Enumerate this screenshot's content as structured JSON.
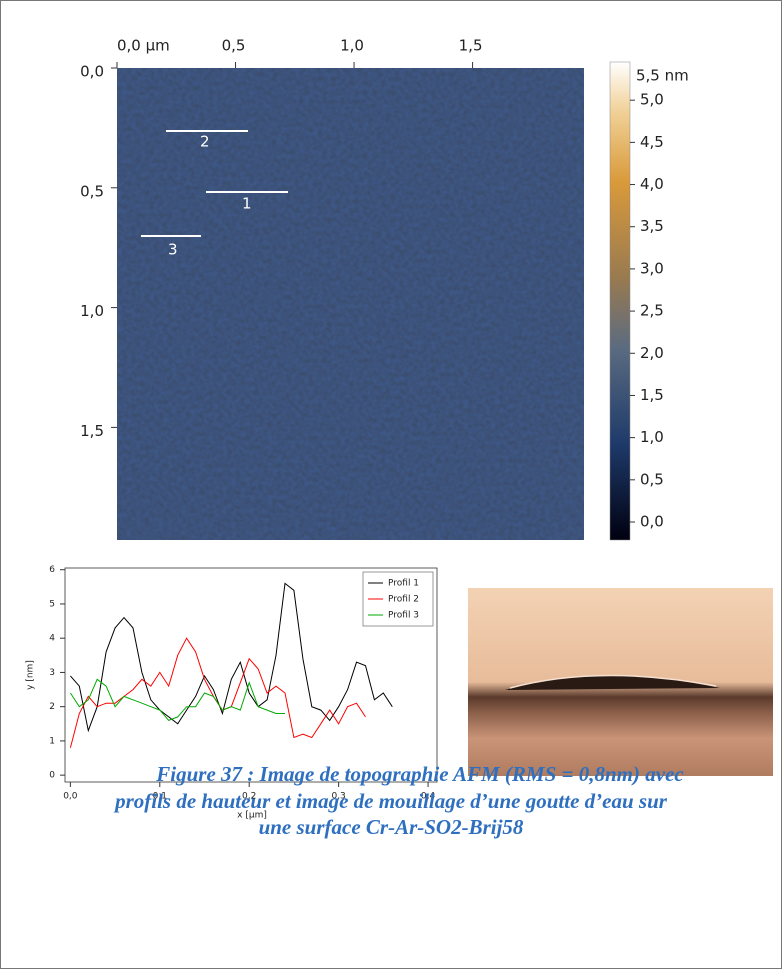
{
  "afm": {
    "xticks": [
      {
        "value": 0,
        "label": "0,0 µm"
      },
      {
        "value": 0.5,
        "label": "0,5"
      },
      {
        "value": 1.0,
        "label": "1,0"
      },
      {
        "value": 1.5,
        "label": "1,5"
      }
    ],
    "yticks": [
      {
        "value": 0,
        "label": "0,0"
      },
      {
        "value": 0.5,
        "label": "0,5"
      },
      {
        "value": 1.0,
        "label": "1,0"
      },
      {
        "value": 1.5,
        "label": "1,5"
      }
    ],
    "lim": [
      0,
      1.97
    ],
    "profiles": [
      "1",
      "2",
      "3"
    ],
    "colorbar": {
      "lim": [
        0,
        5.5
      ],
      "max_label": "5,5 nm",
      "ticks": [
        {
          "value": 0,
          "label": "0,0"
        },
        {
          "value": 0.5,
          "label": "0,5"
        },
        {
          "value": 1.0,
          "label": "1,0"
        },
        {
          "value": 1.5,
          "label": "1,5"
        },
        {
          "value": 2.0,
          "label": "2,0"
        },
        {
          "value": 2.5,
          "label": "2,5"
        },
        {
          "value": 3.0,
          "label": "3,0"
        },
        {
          "value": 3.5,
          "label": "3,5"
        },
        {
          "value": 4.0,
          "label": "4,0"
        },
        {
          "value": 4.5,
          "label": "4,5"
        },
        {
          "value": 5.0,
          "label": "5,0"
        }
      ]
    }
  },
  "chart_data": {
    "type": "line",
    "x_label": "x [µm]",
    "y_label": "y [nm]",
    "x": [
      0,
      0.01,
      0.02,
      0.03,
      0.04,
      0.05,
      0.06,
      0.07,
      0.08,
      0.09,
      0.1,
      0.11,
      0.12,
      0.13,
      0.14,
      0.15,
      0.16,
      0.17,
      0.18,
      0.19,
      0.2,
      0.21,
      0.22,
      0.23,
      0.24,
      0.25,
      0.26,
      0.27,
      0.28,
      0.29,
      0.3,
      0.31,
      0.32,
      0.33,
      0.34,
      0.35,
      0.36
    ],
    "series": [
      {
        "name": "Profil 1",
        "color": "#000000",
        "values": [
          2.9,
          2.6,
          1.3,
          2.0,
          3.6,
          4.3,
          4.6,
          4.3,
          3.0,
          2.2,
          1.9,
          1.7,
          1.5,
          1.9,
          2.3,
          2.9,
          2.5,
          1.8,
          2.8,
          3.3,
          2.4,
          2.0,
          2.2,
          3.5,
          5.6,
          5.4,
          3.4,
          2.0,
          1.9,
          1.6,
          2.0,
          2.5,
          3.3,
          3.2,
          2.2,
          2.4,
          2.0
        ]
      },
      {
        "name": "Profil 2",
        "color": "#ff0000",
        "values": [
          0.8,
          1.8,
          2.3,
          2.0,
          2.1,
          2.1,
          2.3,
          2.5,
          2.8,
          2.6,
          3.0,
          2.6,
          3.5,
          4.0,
          3.6,
          2.8,
          2.3,
          1.9,
          2.0,
          2.7,
          3.4,
          3.1,
          2.4,
          2.6,
          2.4,
          1.1,
          1.2,
          1.1,
          1.5,
          1.9,
          1.5,
          2.0,
          2.1,
          1.7,
          null,
          null,
          null
        ]
      },
      {
        "name": "Profil 3",
        "color": "#00aa00",
        "values": [
          2.4,
          2.0,
          2.2,
          2.8,
          2.6,
          2.0,
          2.3,
          2.2,
          2.1,
          2.0,
          1.9,
          1.6,
          1.7,
          2.0,
          2.0,
          2.4,
          2.3,
          1.9,
          2.0,
          1.9,
          2.7,
          2.0,
          1.9,
          1.8,
          1.8,
          null,
          null,
          null,
          null,
          null,
          null,
          null,
          null,
          null,
          null,
          null,
          null
        ]
      }
    ],
    "xlim": [
      -0.006,
      0.41
    ],
    "ylim": [
      -0.2,
      6.05
    ],
    "xticks": [
      {
        "value": 0,
        "label": "0,0"
      },
      {
        "value": 0.1,
        "label": "0,1"
      },
      {
        "value": 0.2,
        "label": "0,2"
      },
      {
        "value": 0.3,
        "label": "0,3"
      },
      {
        "value": 0.4,
        "label": "0,4"
      }
    ],
    "yticks": [
      0,
      1,
      2,
      3,
      4,
      5,
      6
    ],
    "legend": "top-right"
  },
  "caption": [
    "Figure 37 : Image de topographie AFM (RMS = 0,8nm) avec",
    "profils de hauteur et image de mouillage d’une goutte d’eau sur",
    "une surface Cr-Ar-SO2-Brij58"
  ]
}
